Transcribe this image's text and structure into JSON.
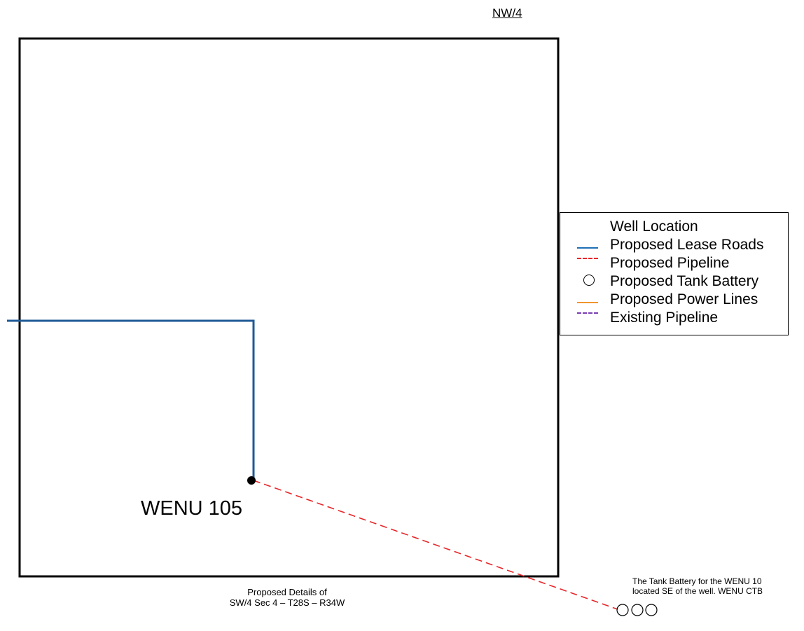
{
  "quarter_label": "NW/4",
  "well": {
    "name": "WENU 105"
  },
  "caption": {
    "line1": "Proposed Details of",
    "line2": "SW/4 Sec 4 – T28S – R34W"
  },
  "note": {
    "line1": "The Tank Battery for the WENU 10",
    "line2": "located SE of the well. WENU CTB"
  },
  "legend": {
    "items": [
      {
        "label": "Well Location",
        "symbol": "none"
      },
      {
        "label": "Proposed Lease Roads",
        "symbol": "solid-line",
        "color": "#1f6fb5"
      },
      {
        "label": "Proposed Pipeline",
        "symbol": "dashed-line",
        "color": "#e8262a"
      },
      {
        "label": "Proposed Tank Battery",
        "symbol": "circle",
        "color": "#000000"
      },
      {
        "label": "Proposed Power Lines",
        "symbol": "solid-line",
        "color": "#f2962e"
      },
      {
        "label": "Existing Pipeline",
        "symbol": "dashed-line",
        "color": "#7a3fb3"
      }
    ]
  },
  "colors": {
    "lease_road": "#1f5a96",
    "pipeline": "#e8262a",
    "boundary": "#000000",
    "well_marker": "#000000"
  }
}
